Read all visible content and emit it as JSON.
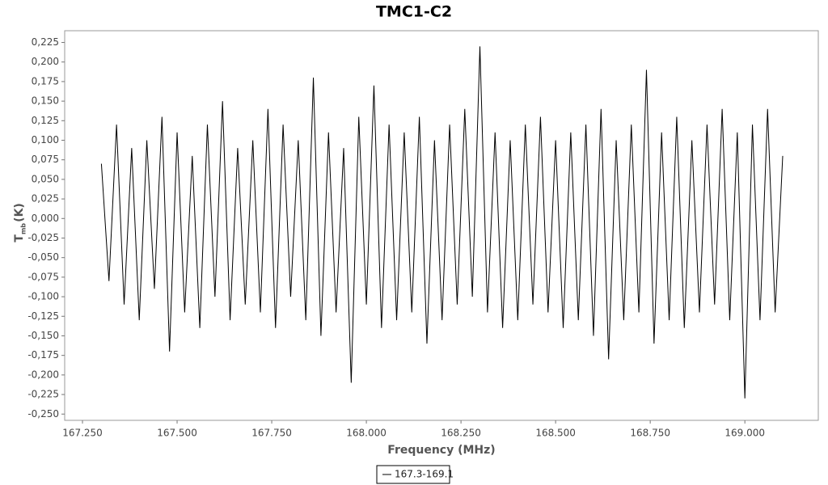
{
  "chart_data": {
    "type": "line",
    "title": "TMC1-C2",
    "xlabel": "Frequency (MHz)",
    "ylabel": {
      "main": "T",
      "sub": "mb",
      "unit": "(K)"
    },
    "x": [
      167.3,
      167.32,
      167.34,
      167.36,
      167.38,
      167.4,
      167.42,
      167.44,
      167.46,
      167.48,
      167.5,
      167.52,
      167.54,
      167.56,
      167.58,
      167.6,
      167.62,
      167.64,
      167.66,
      167.68,
      167.7,
      167.72,
      167.74,
      167.76,
      167.78,
      167.8,
      167.82,
      167.84,
      167.86,
      167.88,
      167.9,
      167.92,
      167.94,
      167.96,
      167.98,
      168.0,
      168.02,
      168.04,
      168.06,
      168.08,
      168.1,
      168.12,
      168.14,
      168.16,
      168.18,
      168.2,
      168.22,
      168.24,
      168.26,
      168.28,
      168.3,
      168.32,
      168.34,
      168.36,
      168.38,
      168.4,
      168.42,
      168.44,
      168.46,
      168.48,
      168.5,
      168.52,
      168.54,
      168.56,
      168.58,
      168.6,
      168.62,
      168.64,
      168.66,
      168.68,
      168.7,
      168.72,
      168.74,
      168.76,
      168.78,
      168.8,
      168.82,
      168.84,
      168.86,
      168.88,
      168.9,
      168.92,
      168.94,
      168.96,
      168.98,
      169.0,
      169.02,
      169.04,
      169.06,
      169.08,
      169.1
    ],
    "series": [
      {
        "name": "167.3-169.1",
        "color": "#000000",
        "values": [
          0.07,
          -0.08,
          0.12,
          -0.11,
          0.09,
          -0.13,
          0.1,
          -0.09,
          0.13,
          -0.17,
          0.11,
          -0.12,
          0.08,
          -0.14,
          0.12,
          -0.1,
          0.15,
          -0.13,
          0.09,
          -0.11,
          0.1,
          -0.12,
          0.14,
          -0.14,
          0.12,
          -0.1,
          0.1,
          -0.13,
          0.18,
          -0.15,
          0.11,
          -0.12,
          0.09,
          -0.21,
          0.13,
          -0.11,
          0.17,
          -0.14,
          0.12,
          -0.13,
          0.11,
          -0.12,
          0.13,
          -0.16,
          0.1,
          -0.13,
          0.12,
          -0.11,
          0.14,
          -0.1,
          0.22,
          -0.12,
          0.11,
          -0.14,
          0.1,
          -0.13,
          0.12,
          -0.11,
          0.13,
          -0.12,
          0.1,
          -0.14,
          0.11,
          -0.13,
          0.12,
          -0.15,
          0.14,
          -0.18,
          0.1,
          -0.13,
          0.12,
          -0.12,
          0.19,
          -0.16,
          0.11,
          -0.13,
          0.13,
          -0.14,
          0.1,
          -0.12,
          0.12,
          -0.11,
          0.14,
          -0.13,
          0.11,
          -0.23,
          0.12,
          -0.13,
          0.14,
          -0.12,
          0.08
        ]
      }
    ],
    "xlim": [
      167.203,
      169.194
    ],
    "xticks": [
      {
        "value": 167.25,
        "label": "167.250"
      },
      {
        "value": 167.5,
        "label": "167.500"
      },
      {
        "value": 167.75,
        "label": "167.750"
      },
      {
        "value": 168.0,
        "label": "168.000"
      },
      {
        "value": 168.25,
        "label": "168.250"
      },
      {
        "value": 168.5,
        "label": "168.500"
      },
      {
        "value": 168.75,
        "label": "168.750"
      },
      {
        "value": 169.0,
        "label": "169.000"
      }
    ],
    "ylim": [
      -0.258,
      0.24
    ],
    "yticks": [
      {
        "value": -0.25,
        "label": "-0,250"
      },
      {
        "value": -0.225,
        "label": "-0,225"
      },
      {
        "value": -0.2,
        "label": "-0,200"
      },
      {
        "value": -0.175,
        "label": "-0,175"
      },
      {
        "value": -0.15,
        "label": "-0,150"
      },
      {
        "value": -0.125,
        "label": "-0,125"
      },
      {
        "value": -0.1,
        "label": "-0,100"
      },
      {
        "value": -0.075,
        "label": "-0,075"
      },
      {
        "value": -0.05,
        "label": "-0,050"
      },
      {
        "value": -0.025,
        "label": "-0,025"
      },
      {
        "value": 0,
        "label": "0,000"
      },
      {
        "value": 0.025,
        "label": "0,025"
      },
      {
        "value": 0.05,
        "label": "0,050"
      },
      {
        "value": 0.075,
        "label": "0,075"
      },
      {
        "value": 0.1,
        "label": "0,100"
      },
      {
        "value": 0.125,
        "label": "0,125"
      },
      {
        "value": 0.15,
        "label": "0,150"
      },
      {
        "value": 0.175,
        "label": "0,175"
      },
      {
        "value": 0.2,
        "label": "0,200"
      },
      {
        "value": 0.225,
        "label": "0,225"
      }
    ],
    "grid": false,
    "legend": "bottom"
  }
}
